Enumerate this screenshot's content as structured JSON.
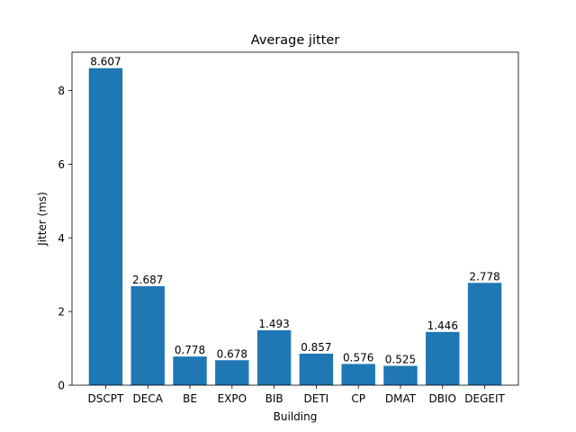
{
  "chart_data": {
    "type": "bar",
    "title": "Average jitter",
    "xlabel": "Building",
    "ylabel": "Jitter (ms)",
    "categories": [
      "DSCPT",
      "DECA",
      "BE",
      "EXPO",
      "BIB",
      "DETI",
      "CP",
      "DMAT",
      "DBIO",
      "DEGEIT"
    ],
    "values": [
      8.607,
      2.687,
      0.778,
      0.678,
      1.493,
      0.857,
      0.576,
      0.525,
      1.446,
      2.778
    ],
    "data_labels": [
      "8.607",
      "2.687",
      "0.778",
      "0.678",
      "1.493",
      "0.857",
      "0.576",
      "0.525",
      "1.446",
      "2.778"
    ],
    "ylim": [
      0,
      9.04
    ],
    "yticks": [
      0,
      2,
      4,
      6,
      8
    ],
    "ytick_labels": [
      "0",
      "2",
      "4",
      "6",
      "8"
    ],
    "grid": false,
    "bar_color": "#1f77b4"
  }
}
